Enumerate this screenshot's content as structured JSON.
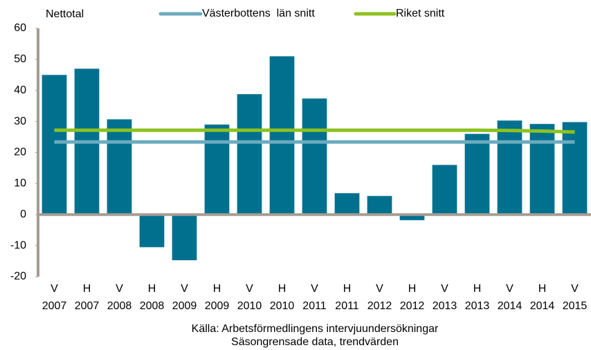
{
  "chart_data": {
    "type": "bar",
    "y_label": "Nettotal",
    "categories": [
      [
        "V",
        "2007"
      ],
      [
        "H",
        "2007"
      ],
      [
        "V",
        "2008"
      ],
      [
        "H",
        "2008"
      ],
      [
        "V",
        "2009"
      ],
      [
        "H",
        "2009"
      ],
      [
        "V",
        "2010"
      ],
      [
        "H",
        "2010"
      ],
      [
        "V",
        "2011"
      ],
      [
        "H",
        "2011"
      ],
      [
        "V",
        "2012"
      ],
      [
        "H",
        "2012"
      ],
      [
        "V",
        "2013"
      ],
      [
        "H",
        "2013"
      ],
      [
        "V",
        "2014"
      ],
      [
        "H",
        "2014"
      ],
      [
        "V",
        "2015"
      ]
    ],
    "values": [
      45,
      47,
      30.7,
      -10.5,
      -14.7,
      29,
      38.8,
      51,
      37.4,
      6.9,
      6,
      -1.8,
      16,
      26,
      30.3,
      29.2,
      29.8
    ],
    "color": "#00708f",
    "series": [
      {
        "name": "Västerbottens  län snitt",
        "color": "#6cabbf",
        "values": [
          23.4,
          23.4,
          23.4,
          23.4,
          23.4,
          23.4,
          23.4,
          23.4,
          23.4,
          23.4,
          23.4,
          23.4,
          23.4,
          23.4,
          23.4,
          23.4,
          23.4
        ]
      },
      {
        "name": "Riket snitt",
        "color": "#8cc21f",
        "values": [
          27.2,
          27.2,
          27.2,
          27.2,
          27.2,
          27.2,
          27.2,
          27.2,
          27.2,
          27.2,
          27.2,
          27.2,
          27.2,
          27.2,
          27.1,
          26.9,
          26.6
        ]
      }
    ],
    "ylim": [
      -20,
      60
    ],
    "yticks": [
      -20,
      -10,
      0,
      10,
      20,
      30,
      40,
      50,
      60
    ],
    "source": [
      "Källa: Arbetsförmedlingens intervjuundersökningar",
      "Säsongrensade data, trendvärden"
    ]
  }
}
